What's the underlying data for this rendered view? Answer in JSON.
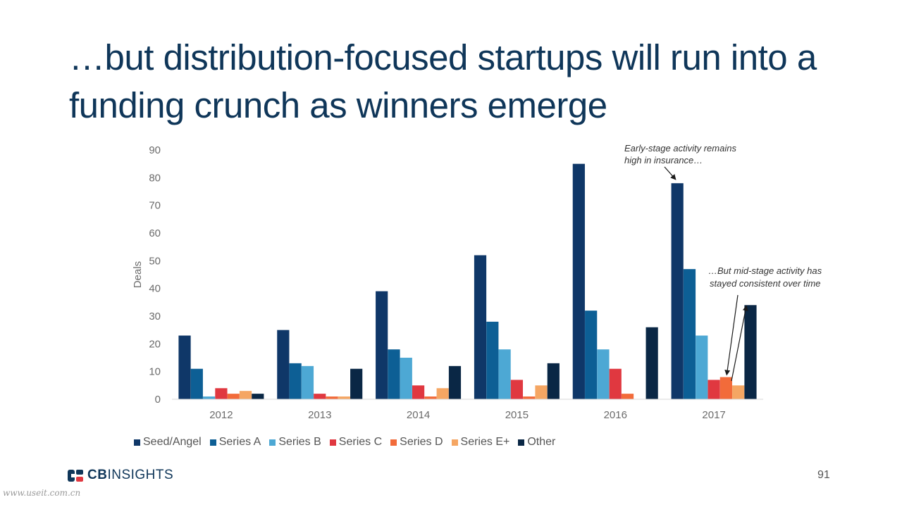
{
  "header": {
    "title": "…but distribution-focused startups will run into a funding crunch as winners emerge"
  },
  "chart_data": {
    "type": "bar",
    "title": "",
    "xlabel": "",
    "ylabel": "Deals",
    "ylim": [
      0,
      90
    ],
    "yticks": [
      0,
      10,
      20,
      30,
      40,
      50,
      60,
      70,
      80,
      90
    ],
    "categories": [
      "2012",
      "2013",
      "2014",
      "2015",
      "2016",
      "2017"
    ],
    "legend_position": "bottom",
    "grid": false,
    "series": [
      {
        "name": "Seed/Angel",
        "color": "#0f3768",
        "values": [
          23,
          25,
          39,
          52,
          85,
          78
        ]
      },
      {
        "name": "Series A",
        "color": "#0d5f95",
        "values": [
          11,
          13,
          18,
          28,
          32,
          47
        ]
      },
      {
        "name": "Series B",
        "color": "#4da8d4",
        "values": [
          1,
          12,
          15,
          18,
          18,
          23
        ]
      },
      {
        "name": "Series C",
        "color": "#e03840",
        "values": [
          4,
          2,
          5,
          7,
          11,
          7
        ]
      },
      {
        "name": "Series D",
        "color": "#f26b3a",
        "values": [
          2,
          1,
          1,
          1,
          2,
          8
        ]
      },
      {
        "name": "Series E+",
        "color": "#f5a663",
        "values": [
          3,
          1,
          4,
          5,
          0,
          5
        ]
      },
      {
        "name": "Other",
        "color": "#0a2745",
        "values": [
          2,
          11,
          12,
          13,
          26,
          34
        ]
      }
    ],
    "annotations": [
      {
        "lines": [
          "Early-stage activity remains",
          "high in insurance…"
        ],
        "target": {
          "category": "2017",
          "series": "Seed/Angel"
        }
      },
      {
        "lines": [
          "…But mid-stage activity has",
          "stayed consistent over time"
        ],
        "targets": [
          {
            "category": "2017",
            "series": "Series D"
          },
          {
            "category": "2017",
            "series": "Other"
          }
        ]
      }
    ]
  },
  "footer": {
    "logo_bold": "CB",
    "logo_rest": "INSIGHTS",
    "page_number": "91",
    "watermark": "www.useit.com.cn"
  }
}
